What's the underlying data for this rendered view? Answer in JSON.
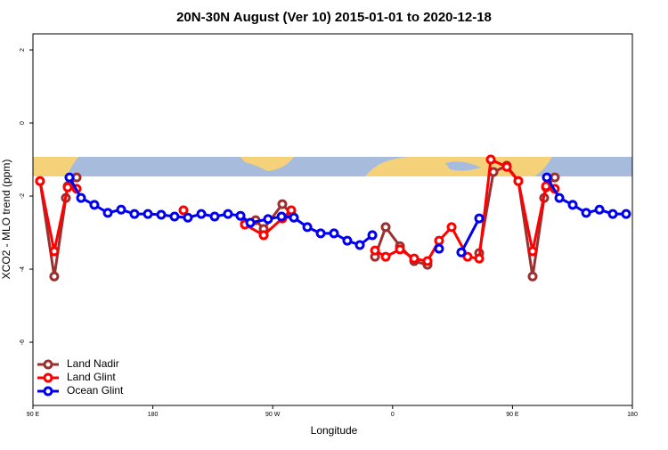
{
  "chart_data": {
    "type": "line",
    "title": "20N-30N August (Ver 10)   2015-01-01 to 2020-12-18",
    "x_label": "Longitude",
    "y_label": "XCO2 - MLO trend (ppm)",
    "xlim": [
      90,
      540
    ],
    "ylim": [
      -7.73,
      2.44
    ],
    "xticks": [
      {
        "value": 90,
        "label": "90 E"
      },
      180,
      {
        "value": 270,
        "label": "90 W"
      },
      {
        "value": 360,
        "label": "0"
      },
      {
        "value": 450,
        "label": "90 E"
      },
      {
        "value": 540,
        "label": "180"
      }
    ],
    "yticks": [
      2,
      0,
      -2,
      -4,
      -6
    ],
    "legend": "bottom-left",
    "series": [
      {
        "name": "Land Nadir",
        "color": "#9c2f2f",
        "x": [
          95.3,
          106.0,
          114.7,
          116.1,
          122.8,
          null,
          249.1,
          257.2,
          263.2,
          277.2,
          283.9,
          null,
          346.8,
          354.8,
          365.5,
          376.2,
          386.2,
          null,
          425.0,
          435.7,
          445.7,
          454.4,
          465.1,
          473.8,
          475.2,
          481.8
        ],
        "values": [
          -1.59,
          -4.2,
          -2.05,
          -1.73,
          -1.49,
          null,
          -2.76,
          -2.66,
          -2.9,
          -2.22,
          -2.49,
          null,
          -3.66,
          -2.85,
          -3.37,
          -3.78,
          -3.88,
          null,
          -3.56,
          -1.34,
          -1.17,
          -1.59,
          -4.2,
          -2.05,
          -1.76,
          -1.49
        ]
      },
      {
        "name": "Land Glint",
        "color": "#ff0000",
        "x": [
          95.3,
          106.0,
          116.1,
          122.8,
          null,
          203.0,
          null,
          249.1,
          263.2,
          277.2,
          283.9,
          null,
          346.8,
          354.8,
          365.5,
          376.2,
          386.2,
          394.9,
          404.3,
          416.3,
          425.0,
          433.7,
          445.7,
          454.4,
          465.1,
          475.2,
          481.8
        ],
        "values": [
          -1.59,
          -3.51,
          -1.76,
          -1.8,
          null,
          -2.39,
          null,
          -2.78,
          -3.07,
          -2.61,
          -2.39,
          null,
          -3.49,
          -3.66,
          -3.46,
          -3.71,
          -3.78,
          -3.22,
          -2.85,
          -3.66,
          -3.71,
          -1.0,
          -1.2,
          -1.59,
          -3.51,
          -1.73,
          -1.8
        ]
      },
      {
        "name": "Ocean Glint",
        "color": "#0000ee",
        "x": [
          117.4,
          126.1,
          136.1,
          146.2,
          156.2,
          166.2,
          176.3,
          186.3,
          196.3,
          206.3,
          216.4,
          226.4,
          236.4,
          245.8,
          253.2,
          266.5,
          276.6,
          285.9,
          296.0,
          306.0,
          316.0,
          326.0,
          335.4,
          344.8,
          null,
          394.9,
          null,
          411.6,
          425.0,
          null,
          475.8,
          485.2,
          495.2,
          505.3,
          515.3,
          525.3,
          535.3
        ],
        "values": [
          -1.49,
          -2.05,
          -2.24,
          -2.46,
          -2.37,
          -2.49,
          -2.49,
          -2.51,
          -2.56,
          -2.59,
          -2.49,
          -2.56,
          -2.49,
          -2.54,
          -2.73,
          -2.63,
          -2.56,
          -2.59,
          -2.85,
          -3.02,
          -3.02,
          -3.22,
          -3.34,
          -3.07,
          null,
          -3.44,
          null,
          -3.54,
          -2.61,
          null,
          -1.49,
          -2.05,
          -2.24,
          -2.46,
          -2.37,
          -2.49,
          -2.49
        ]
      }
    ]
  }
}
